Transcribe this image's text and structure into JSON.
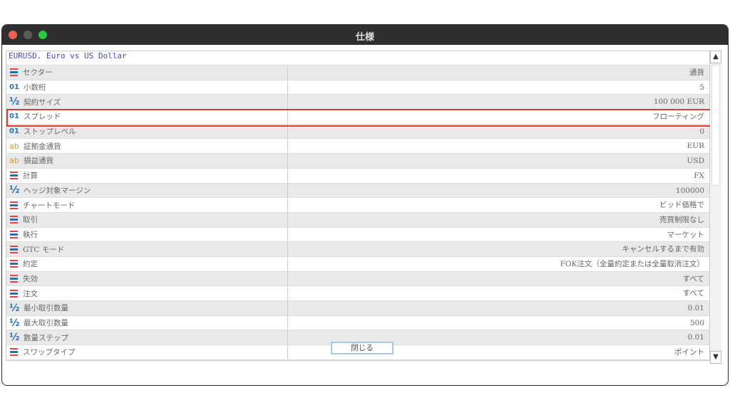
{
  "window": {
    "title": "仕様",
    "colors": {
      "close": "#ed5f57",
      "minimize": "#5a5a5a",
      "maximize": "#2ac840"
    }
  },
  "symbol_header": "EURUSD. Euro vs US Dollar",
  "rows": [
    {
      "icon": "list-icon",
      "label": "セクター",
      "value": "通貨"
    },
    {
      "icon": "integer-icon",
      "label": "小数桁",
      "value": "5"
    },
    {
      "icon": "fraction-icon",
      "label": "契約サイズ",
      "value": "100 000 EUR"
    },
    {
      "icon": "integer-icon",
      "label": "スプレッド",
      "value": "フローティング",
      "highlighted": true
    },
    {
      "icon": "integer-icon",
      "label": "ストップレベル",
      "value": "0"
    },
    {
      "icon": "text-icon",
      "label": "証拠金通貨",
      "value": "EUR"
    },
    {
      "icon": "text-icon",
      "label": "損益通貨",
      "value": "USD"
    },
    {
      "icon": "list-icon",
      "label": "計算",
      "value": "FX"
    },
    {
      "icon": "fraction-icon",
      "label": "ヘッジ対象マージン",
      "value": "100000"
    },
    {
      "icon": "list-icon",
      "label": "チャートモード",
      "value": "ビッド価格で"
    },
    {
      "icon": "list-icon",
      "label": "取引",
      "value": "売買制限なし"
    },
    {
      "icon": "list-icon",
      "label": "執行",
      "value": "マーケット"
    },
    {
      "icon": "list-icon",
      "label": "GTC モード",
      "value": "キャンセルするまで有効"
    },
    {
      "icon": "list-icon",
      "label": "約定",
      "value": "FOK注文（全量約定または全量取消注文）"
    },
    {
      "icon": "list-icon",
      "label": "失効",
      "value": "すべて"
    },
    {
      "icon": "list-icon",
      "label": "注文",
      "value": "すべて"
    },
    {
      "icon": "fraction-icon",
      "label": "最小取引数量",
      "value": "0.01"
    },
    {
      "icon": "fraction-icon",
      "label": "最大取引数量",
      "value": "500"
    },
    {
      "icon": "fraction-icon",
      "label": "数量ステップ",
      "value": "0.01"
    },
    {
      "icon": "list-icon",
      "label": "スワップタイプ",
      "value": "ポイント"
    }
  ],
  "icon_glyphs": {
    "integer-icon": "01",
    "fraction-icon": "½",
    "text-icon": "ab"
  },
  "close_button": "閉じる",
  "highlight_color": "#e03a3a"
}
